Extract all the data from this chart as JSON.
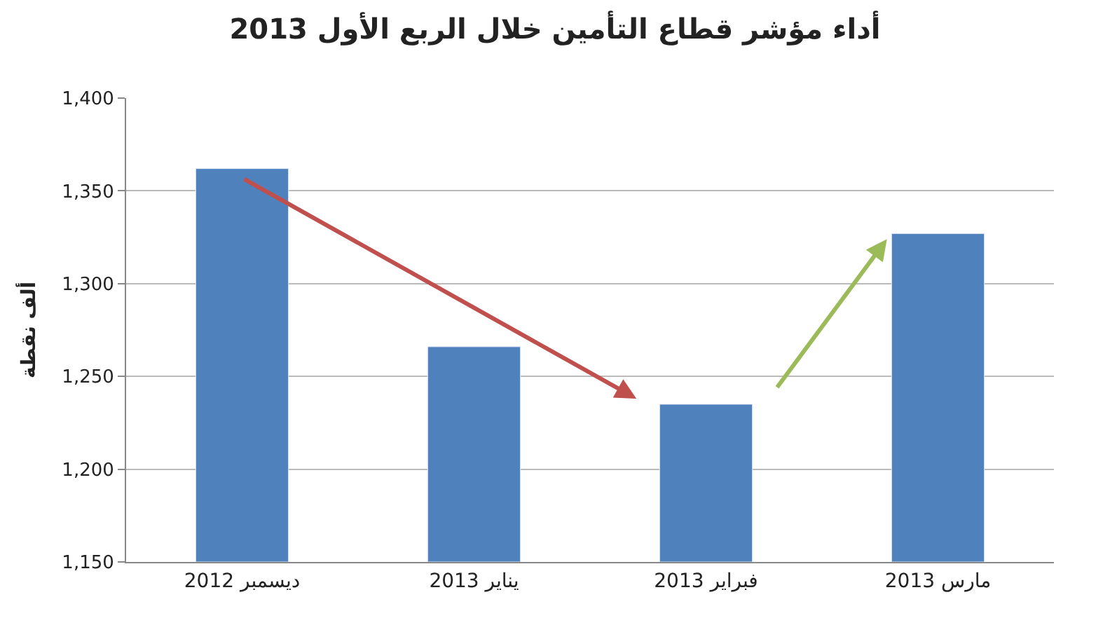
{
  "chart_data": {
    "type": "bar",
    "title": "أداء مؤشر قطاع التأمين خلال الربع الأول 2013",
    "ylabel": "ألف نقطة",
    "categories": [
      "ديسمبر 2012",
      "يناير 2013",
      "فبراير 2013",
      "مارس 2013"
    ],
    "values": [
      1362,
      1266,
      1235,
      1327
    ],
    "color": "#4f81bd",
    "ylim": [
      1150,
      1400
    ],
    "yticks": [
      {
        "value": 1150,
        "label": "1,150"
      },
      {
        "value": 1200,
        "label": "1,200"
      },
      {
        "value": 1250,
        "label": "1,250"
      },
      {
        "value": 1300,
        "label": "1,300"
      },
      {
        "value": 1350,
        "label": "1,350"
      },
      {
        "value": 1400,
        "label": "1,400"
      }
    ],
    "grid": "y"
  }
}
